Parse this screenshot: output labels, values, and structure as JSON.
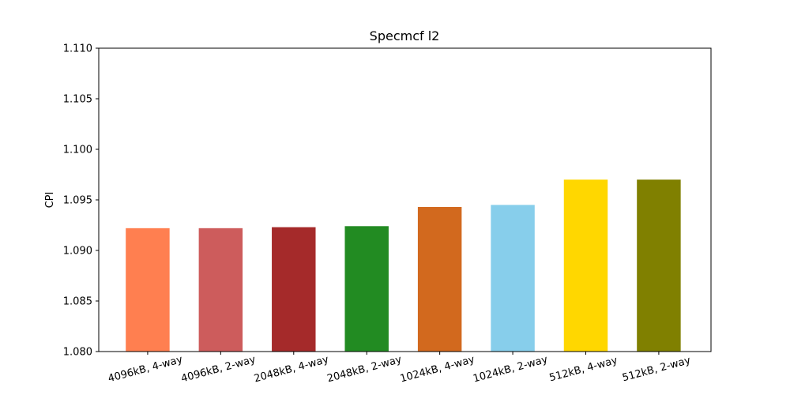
{
  "chart_data": {
    "type": "bar",
    "title": "Specmcf l2",
    "xlabel": "",
    "ylabel": "CPI",
    "ylim": [
      1.08,
      1.11
    ],
    "yticks": [
      "1.080",
      "1.085",
      "1.090",
      "1.095",
      "1.100",
      "1.105",
      "1.110"
    ],
    "grid": false,
    "categories": [
      "4096kB, 4-way",
      "4096kB, 2-way",
      "2048kB, 4-way",
      "2048kB, 2-way",
      "1024kB, 4-way",
      "1024kB, 2-way",
      "512kB, 4-way",
      "512kB, 2-way"
    ],
    "values": [
      1.0922,
      1.0922,
      1.0923,
      1.0924,
      1.0943,
      1.0945,
      1.097,
      1.097
    ],
    "colors": [
      "#ff7f50",
      "#cd5c5c",
      "#a52a2a",
      "#228b22",
      "#d2691e",
      "#87ceeb",
      "#ffd700",
      "#808000"
    ]
  }
}
